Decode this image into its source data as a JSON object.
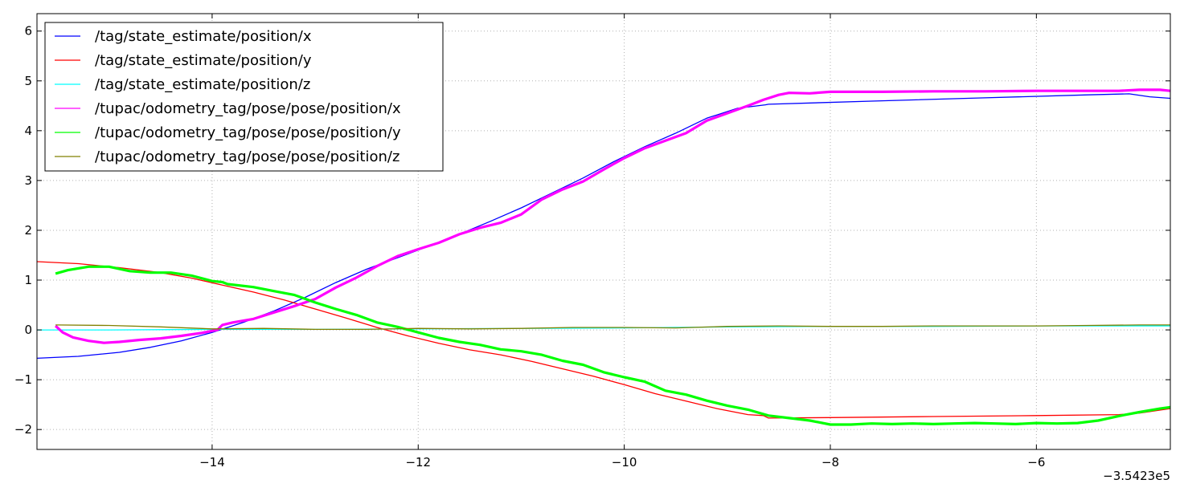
{
  "chart_data": {
    "type": "line",
    "x_offset_label": "−3.5423e5",
    "xlim": [
      -15.7,
      -4.7
    ],
    "ylim": [
      -2.4,
      6.35
    ],
    "xticks": [
      -14,
      -12,
      -10,
      -8,
      -6
    ],
    "xtick_labels": [
      "−14",
      "−12",
      "−10",
      "−8",
      "−6"
    ],
    "yticks": [
      -2,
      -1,
      0,
      1,
      2,
      3,
      4,
      5,
      6
    ],
    "ytick_labels": [
      "−2",
      "−1",
      "0",
      "1",
      "2",
      "3",
      "4",
      "5",
      "6"
    ],
    "grid": true,
    "legend_location": "upper-left",
    "series": [
      {
        "name": "/tag/state_estimate/position/x",
        "color": "#0000ff",
        "thick": false,
        "points": [
          [
            -15.7,
            -0.57
          ],
          [
            -15.3,
            -0.53
          ],
          [
            -14.9,
            -0.45
          ],
          [
            -14.6,
            -0.35
          ],
          [
            -14.3,
            -0.22
          ],
          [
            -14.0,
            -0.05
          ],
          [
            -13.7,
            0.15
          ],
          [
            -13.4,
            0.38
          ],
          [
            -13.1,
            0.65
          ],
          [
            -12.8,
            0.95
          ],
          [
            -12.5,
            1.22
          ],
          [
            -12.2,
            1.45
          ],
          [
            -11.9,
            1.68
          ],
          [
            -11.6,
            1.92
          ],
          [
            -11.3,
            2.18
          ],
          [
            -11.0,
            2.45
          ],
          [
            -10.7,
            2.75
          ],
          [
            -10.4,
            3.05
          ],
          [
            -10.1,
            3.38
          ],
          [
            -9.8,
            3.68
          ],
          [
            -9.5,
            3.95
          ],
          [
            -9.2,
            4.25
          ],
          [
            -8.9,
            4.45
          ],
          [
            -8.63,
            4.52
          ],
          [
            -8.6,
            4.53
          ],
          [
            -7.5,
            4.6
          ],
          [
            -6.5,
            4.66
          ],
          [
            -5.5,
            4.72
          ],
          [
            -5.1,
            4.74
          ],
          [
            -4.9,
            4.68
          ],
          [
            -4.7,
            4.65
          ]
        ]
      },
      {
        "name": "/tag/state_estimate/position/y",
        "color": "#ff0000",
        "thick": false,
        "points": [
          [
            -15.7,
            1.37
          ],
          [
            -15.3,
            1.33
          ],
          [
            -14.9,
            1.25
          ],
          [
            -14.5,
            1.15
          ],
          [
            -14.2,
            1.04
          ],
          [
            -13.9,
            0.9
          ],
          [
            -13.6,
            0.76
          ],
          [
            -13.3,
            0.6
          ],
          [
            -13.0,
            0.42
          ],
          [
            -12.7,
            0.24
          ],
          [
            -12.4,
            0.05
          ],
          [
            -12.1,
            -0.12
          ],
          [
            -11.8,
            -0.27
          ],
          [
            -11.5,
            -0.4
          ],
          [
            -11.2,
            -0.5
          ],
          [
            -10.9,
            -0.63
          ],
          [
            -10.6,
            -0.78
          ],
          [
            -10.3,
            -0.93
          ],
          [
            -10.0,
            -1.1
          ],
          [
            -9.7,
            -1.28
          ],
          [
            -9.4,
            -1.43
          ],
          [
            -9.1,
            -1.58
          ],
          [
            -8.8,
            -1.7
          ],
          [
            -8.65,
            -1.72
          ],
          [
            -8.6,
            -1.77
          ],
          [
            -8.0,
            -1.76
          ],
          [
            -7.0,
            -1.74
          ],
          [
            -6.0,
            -1.72
          ],
          [
            -5.2,
            -1.7
          ],
          [
            -5.0,
            -1.67
          ],
          [
            -4.7,
            -1.58
          ]
        ]
      },
      {
        "name": "/tag/state_estimate/position/z",
        "color": "#00ffff",
        "thick": false,
        "points": [
          [
            -15.7,
            0.0
          ],
          [
            -15.0,
            0.0
          ],
          [
            -14.0,
            0.01
          ],
          [
            -13.0,
            0.01
          ],
          [
            -12.0,
            0.02
          ],
          [
            -11.0,
            0.03
          ],
          [
            -10.0,
            0.04
          ],
          [
            -9.0,
            0.06
          ],
          [
            -8.0,
            0.07
          ],
          [
            -7.0,
            0.07
          ],
          [
            -6.0,
            0.08
          ],
          [
            -5.0,
            0.08
          ],
          [
            -4.7,
            0.08
          ]
        ]
      },
      {
        "name": "/tupac/odometry_tag/pose/pose/position/x",
        "color": "#ff00ff",
        "thick": true,
        "points": [
          [
            -15.52,
            0.08
          ],
          [
            -15.45,
            -0.05
          ],
          [
            -15.35,
            -0.15
          ],
          [
            -15.2,
            -0.22
          ],
          [
            -15.05,
            -0.26
          ],
          [
            -14.9,
            -0.24
          ],
          [
            -14.7,
            -0.2
          ],
          [
            -14.5,
            -0.17
          ],
          [
            -14.3,
            -0.12
          ],
          [
            -14.1,
            -0.06
          ],
          [
            -13.95,
            0.0
          ],
          [
            -13.9,
            0.1
          ],
          [
            -13.8,
            0.15
          ],
          [
            -13.6,
            0.22
          ],
          [
            -13.4,
            0.35
          ],
          [
            -13.2,
            0.48
          ],
          [
            -13.0,
            0.62
          ],
          [
            -12.8,
            0.85
          ],
          [
            -12.6,
            1.05
          ],
          [
            -12.4,
            1.28
          ],
          [
            -12.2,
            1.48
          ],
          [
            -12.0,
            1.62
          ],
          [
            -11.8,
            1.75
          ],
          [
            -11.6,
            1.92
          ],
          [
            -11.4,
            2.05
          ],
          [
            -11.2,
            2.15
          ],
          [
            -11.0,
            2.32
          ],
          [
            -10.8,
            2.62
          ],
          [
            -10.6,
            2.82
          ],
          [
            -10.4,
            2.98
          ],
          [
            -10.2,
            3.22
          ],
          [
            -10.0,
            3.45
          ],
          [
            -9.8,
            3.65
          ],
          [
            -9.6,
            3.8
          ],
          [
            -9.4,
            3.95
          ],
          [
            -9.2,
            4.2
          ],
          [
            -9.0,
            4.35
          ],
          [
            -8.8,
            4.5
          ],
          [
            -8.65,
            4.62
          ],
          [
            -8.5,
            4.72
          ],
          [
            -8.4,
            4.76
          ],
          [
            -8.2,
            4.75
          ],
          [
            -8.0,
            4.78
          ],
          [
            -7.5,
            4.78
          ],
          [
            -7.0,
            4.79
          ],
          [
            -6.5,
            4.79
          ],
          [
            -6.0,
            4.8
          ],
          [
            -5.5,
            4.8
          ],
          [
            -5.2,
            4.8
          ],
          [
            -5.0,
            4.82
          ],
          [
            -4.8,
            4.82
          ],
          [
            -4.7,
            4.8
          ]
        ]
      },
      {
        "name": "/tupac/odometry_tag/pose/pose/position/y",
        "color": "#00ff00",
        "thick": true,
        "points": [
          [
            -15.52,
            1.13
          ],
          [
            -15.4,
            1.2
          ],
          [
            -15.2,
            1.27
          ],
          [
            -15.0,
            1.27
          ],
          [
            -14.8,
            1.18
          ],
          [
            -14.6,
            1.15
          ],
          [
            -14.4,
            1.15
          ],
          [
            -14.2,
            1.09
          ],
          [
            -14.0,
            0.98
          ],
          [
            -13.9,
            0.96
          ],
          [
            -13.85,
            0.92
          ],
          [
            -13.6,
            0.86
          ],
          [
            -13.4,
            0.78
          ],
          [
            -13.2,
            0.7
          ],
          [
            -13.0,
            0.55
          ],
          [
            -12.8,
            0.42
          ],
          [
            -12.6,
            0.3
          ],
          [
            -12.4,
            0.15
          ],
          [
            -12.2,
            0.06
          ],
          [
            -12.0,
            -0.05
          ],
          [
            -11.8,
            -0.16
          ],
          [
            -11.6,
            -0.24
          ],
          [
            -11.4,
            -0.3
          ],
          [
            -11.2,
            -0.39
          ],
          [
            -11.0,
            -0.43
          ],
          [
            -10.8,
            -0.5
          ],
          [
            -10.6,
            -0.62
          ],
          [
            -10.4,
            -0.7
          ],
          [
            -10.2,
            -0.85
          ],
          [
            -10.0,
            -0.95
          ],
          [
            -9.8,
            -1.04
          ],
          [
            -9.6,
            -1.22
          ],
          [
            -9.4,
            -1.3
          ],
          [
            -9.2,
            -1.42
          ],
          [
            -9.0,
            -1.52
          ],
          [
            -8.8,
            -1.6
          ],
          [
            -8.6,
            -1.72
          ],
          [
            -8.4,
            -1.77
          ],
          [
            -8.2,
            -1.82
          ],
          [
            -8.0,
            -1.9
          ],
          [
            -7.8,
            -1.9
          ],
          [
            -7.6,
            -1.88
          ],
          [
            -7.4,
            -1.89
          ],
          [
            -7.2,
            -1.88
          ],
          [
            -7.0,
            -1.89
          ],
          [
            -6.8,
            -1.88
          ],
          [
            -6.6,
            -1.87
          ],
          [
            -6.4,
            -1.88
          ],
          [
            -6.2,
            -1.89
          ],
          [
            -6.0,
            -1.87
          ],
          [
            -5.8,
            -1.88
          ],
          [
            -5.6,
            -1.87
          ],
          [
            -5.4,
            -1.82
          ],
          [
            -5.2,
            -1.73
          ],
          [
            -5.0,
            -1.65
          ],
          [
            -4.8,
            -1.58
          ],
          [
            -4.7,
            -1.55
          ]
        ]
      },
      {
        "name": "/tupac/odometry_tag/pose/pose/position/z",
        "color": "#808000",
        "thick": false,
        "points": [
          [
            -15.52,
            0.1
          ],
          [
            -15.0,
            0.09
          ],
          [
            -14.5,
            0.06
          ],
          [
            -14.0,
            0.02
          ],
          [
            -13.5,
            0.03
          ],
          [
            -13.0,
            0.01
          ],
          [
            -12.5,
            0.01
          ],
          [
            -12.0,
            0.03
          ],
          [
            -11.5,
            0.02
          ],
          [
            -11.0,
            0.03
          ],
          [
            -10.5,
            0.05
          ],
          [
            -10.0,
            0.05
          ],
          [
            -9.5,
            0.04
          ],
          [
            -9.0,
            0.07
          ],
          [
            -8.5,
            0.08
          ],
          [
            -8.0,
            0.07
          ],
          [
            -7.5,
            0.07
          ],
          [
            -7.0,
            0.08
          ],
          [
            -6.5,
            0.08
          ],
          [
            -6.0,
            0.08
          ],
          [
            -5.5,
            0.09
          ],
          [
            -5.0,
            0.1
          ],
          [
            -4.7,
            0.1
          ]
        ]
      }
    ]
  }
}
